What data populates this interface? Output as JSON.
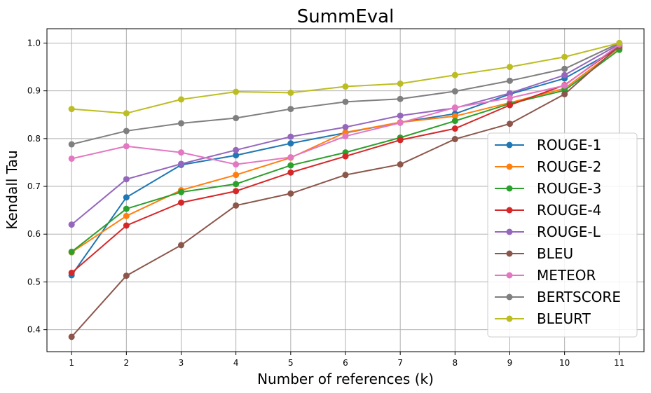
{
  "chart_data": {
    "type": "line",
    "title": "SummEval",
    "xlabel": "Number of references (k)",
    "ylabel": "Kendall Tau",
    "x": [
      1,
      2,
      3,
      4,
      5,
      6,
      7,
      8,
      9,
      10,
      11
    ],
    "xticks": [
      "1",
      "2",
      "3",
      "4",
      "5",
      "6",
      "7",
      "8",
      "9",
      "10",
      "11"
    ],
    "yticks": [
      "0.4",
      "0.5",
      "0.6",
      "0.7",
      "0.8",
      "0.9",
      "1.0"
    ],
    "ytick_values": [
      0.4,
      0.5,
      0.6,
      0.7,
      0.8,
      0.9,
      1.0
    ],
    "xlim": [
      0.55,
      11.45
    ],
    "ylim": [
      0.354,
      1.03
    ],
    "grid": true,
    "legend_position": "center-right",
    "series": [
      {
        "name": "ROUGE-1",
        "color": "#1f77b4",
        "values": [
          0.514,
          0.677,
          0.745,
          0.765,
          0.79,
          0.812,
          0.834,
          0.852,
          0.893,
          0.926,
          0.99
        ]
      },
      {
        "name": "ROUGE-2",
        "color": "#ff7f0e",
        "values": [
          0.562,
          0.638,
          0.692,
          0.724,
          0.76,
          0.813,
          0.834,
          0.847,
          0.875,
          0.905,
          0.99
        ]
      },
      {
        "name": "ROUGE-3",
        "color": "#2ca02c",
        "values": [
          0.563,
          0.653,
          0.688,
          0.705,
          0.744,
          0.771,
          0.802,
          0.837,
          0.873,
          0.901,
          0.986
        ]
      },
      {
        "name": "ROUGE-4",
        "color": "#d62728",
        "values": [
          0.519,
          0.618,
          0.666,
          0.69,
          0.729,
          0.763,
          0.797,
          0.821,
          0.87,
          0.912,
          0.994
        ]
      },
      {
        "name": "ROUGE-L",
        "color": "#9467bd",
        "values": [
          0.62,
          0.715,
          0.747,
          0.776,
          0.804,
          0.824,
          0.848,
          0.864,
          0.895,
          0.933,
          0.998
        ]
      },
      {
        "name": "BLEU",
        "color": "#8c564b",
        "values": [
          0.385,
          0.513,
          0.577,
          0.66,
          0.685,
          0.724,
          0.746,
          0.799,
          0.831,
          0.893,
          0.994
        ]
      },
      {
        "name": "METEOR",
        "color": "#e377c2",
        "values": [
          0.758,
          0.784,
          0.771,
          0.746,
          0.761,
          0.805,
          0.833,
          0.865,
          0.885,
          0.911,
          0.997
        ]
      },
      {
        "name": "BERTSCORE",
        "color": "#7f7f7f",
        "values": [
          0.788,
          0.816,
          0.832,
          0.843,
          0.862,
          0.877,
          0.883,
          0.899,
          0.921,
          0.946,
          1.0
        ]
      },
      {
        "name": "BLEURT",
        "color": "#bcbd22",
        "values": [
          0.862,
          0.853,
          0.882,
          0.898,
          0.896,
          0.909,
          0.915,
          0.933,
          0.95,
          0.971,
          1.0
        ]
      }
    ]
  }
}
